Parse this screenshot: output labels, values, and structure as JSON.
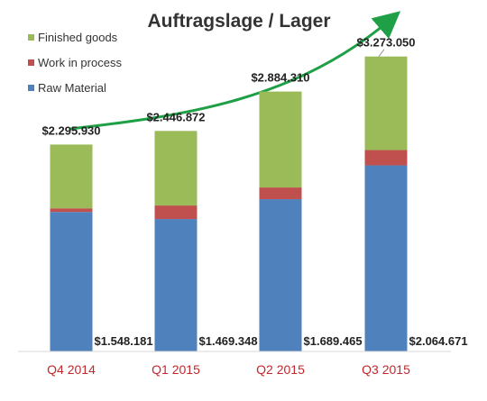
{
  "chart_data": {
    "type": "bar",
    "stacked": true,
    "title": "Auftragslage / Lager",
    "xlabel": "",
    "ylabel": "",
    "ylim": [
      0,
      3700000
    ],
    "grid": false,
    "legend_position": "top-left",
    "categories": [
      "Q4 2014",
      "Q1 2015",
      "Q2 2015",
      "Q3 2015"
    ],
    "series": [
      {
        "name": "Raw Material",
        "color": "#4f81bd",
        "values": [
          1548181,
          1469348,
          1689465,
          2064671
        ]
      },
      {
        "name": "Work in process",
        "color": "#c0504d",
        "values": [
          40000,
          150000,
          130000,
          170000
        ]
      },
      {
        "name": "Finished goods",
        "color": "#9bbb59",
        "values": [
          707749,
          827524,
          1064845,
          1038379
        ]
      }
    ],
    "legend_order": [
      "Finished goods",
      "Work in process",
      "Raw Material"
    ],
    "total_labels": [
      "$2.295.930",
      "$2.446.872",
      "$2.884.310",
      "$3.273.050"
    ],
    "raw_labels": [
      "$1.548.181",
      "$1.469.348",
      "$1.689.465",
      "$2.064.671"
    ],
    "category_label_color": "#c0282d",
    "trend_arrow_color": "#1fa046"
  }
}
